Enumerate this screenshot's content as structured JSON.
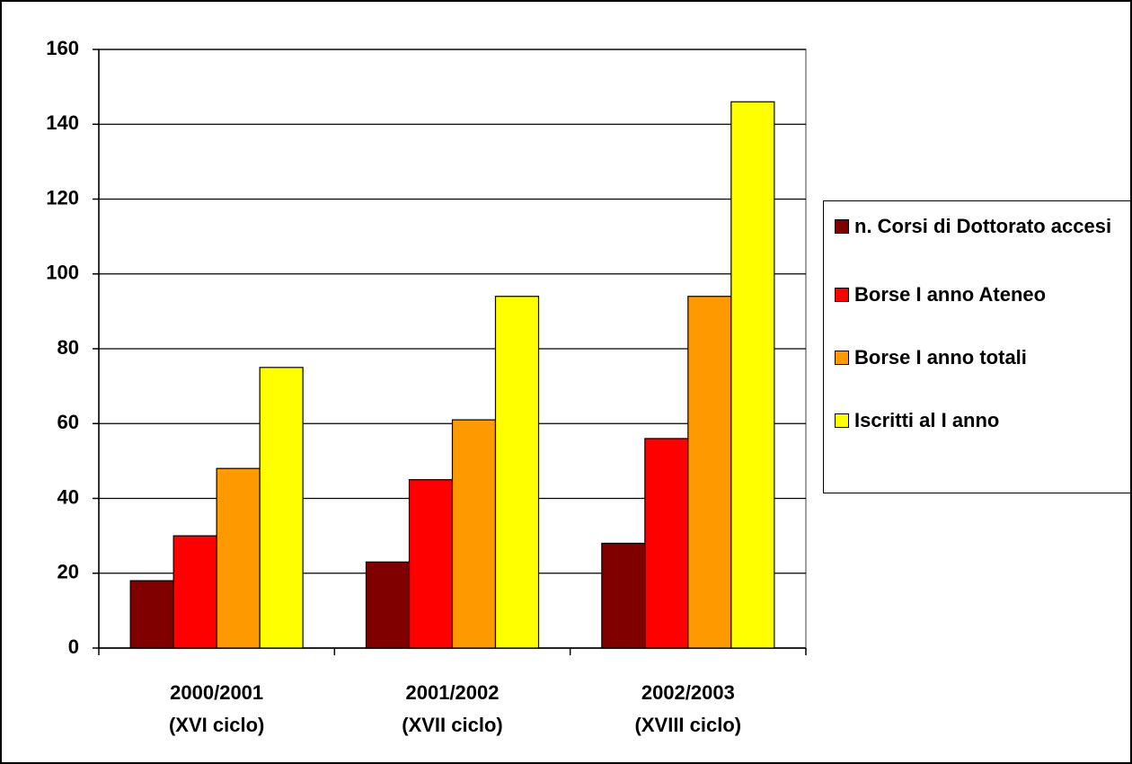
{
  "chart_data": {
    "type": "bar",
    "categories": [
      [
        "2000/2001",
        "(XVI ciclo)"
      ],
      [
        "2001/2002",
        "(XVII ciclo)"
      ],
      [
        "2002/2003",
        "(XVIII ciclo)"
      ]
    ],
    "series": [
      {
        "name": "n. Corsi di Dottorato accesi",
        "color": "#800000",
        "values": [
          18,
          23,
          28
        ]
      },
      {
        "name": "Borse I anno Ateneo",
        "color": "#ff0000",
        "values": [
          30,
          45,
          56
        ]
      },
      {
        "name": "Borse I anno totali",
        "color": "#ff9900",
        "values": [
          48,
          61,
          94
        ]
      },
      {
        "name": "Iscritti al I anno",
        "color": "#ffff00",
        "values": [
          75,
          94,
          146
        ]
      }
    ],
    "ylim": [
      0,
      160
    ],
    "yticks": [
      0,
      20,
      40,
      60,
      80,
      100,
      120,
      140,
      160
    ],
    "grid": true,
    "legend": "right"
  }
}
